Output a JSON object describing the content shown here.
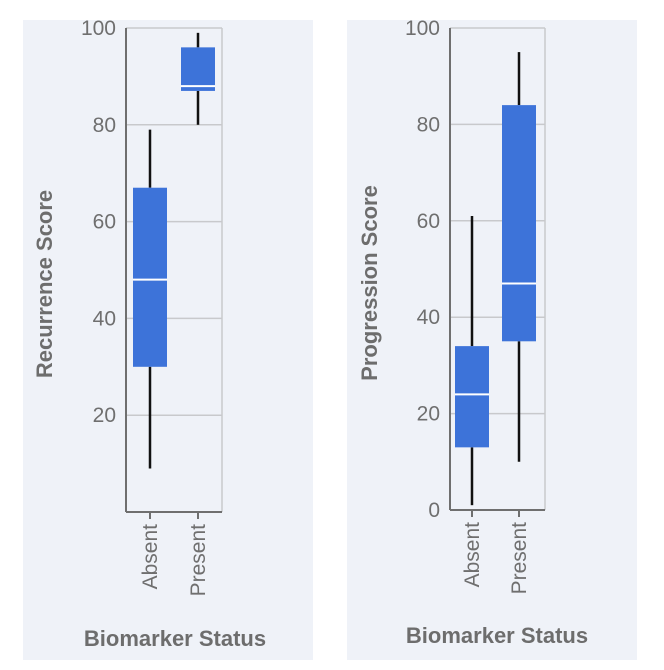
{
  "chart_data": [
    {
      "type": "box",
      "xlabel": "Biomarker Status",
      "ylabel": "Recurrence Score",
      "ylim": [
        0,
        100
      ],
      "yticks": [
        20,
        40,
        60,
        80,
        100
      ],
      "categories": [
        "Absent",
        "Present"
      ],
      "boxes": [
        {
          "category": "Absent",
          "min": 9,
          "q1": 30,
          "median": 48,
          "q3": 67,
          "max": 79
        },
        {
          "category": "Present",
          "min": 80,
          "q1": 87,
          "median": 88,
          "q3": 96,
          "max": 99
        }
      ],
      "box_color": "#3d73d9",
      "grid": true
    },
    {
      "type": "box",
      "xlabel": "Biomarker Status",
      "ylabel": "Progression Score",
      "ylim": [
        0,
        100
      ],
      "yticks": [
        0,
        20,
        40,
        60,
        80,
        100
      ],
      "categories": [
        "Absent",
        "Present"
      ],
      "boxes": [
        {
          "category": "Absent",
          "min": 1,
          "q1": 13,
          "median": 24,
          "q3": 34,
          "max": 61
        },
        {
          "category": "Present",
          "min": 10,
          "q1": 35,
          "median": 47,
          "q3": 84,
          "max": 95
        }
      ],
      "box_color": "#3d73d9",
      "grid": true
    }
  ]
}
